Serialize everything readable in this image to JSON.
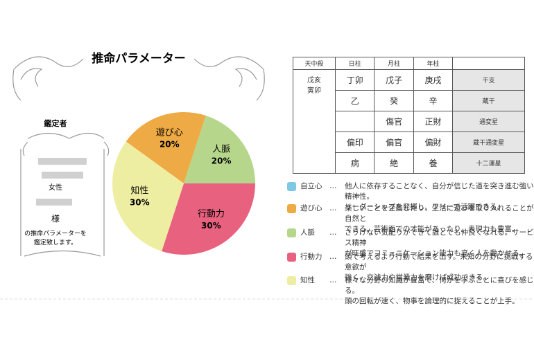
{
  "panel": {
    "title": "推命パラメーター",
    "appraiser": "鑑定者",
    "gender": "女性",
    "honorific": "様",
    "note": [
      "の推命パラメーターを",
      "鑑定致します。"
    ]
  },
  "chart_data": {
    "type": "pie",
    "categories": [
      "遊び心",
      "人脈",
      "行動力",
      "知性"
    ],
    "values": [
      20,
      20,
      30,
      30
    ],
    "value_labels": [
      "20%",
      "20%",
      "30%",
      "30%"
    ],
    "colors": [
      "#eeaa44",
      "#b6d78b",
      "#e8617f",
      "#eeeea2"
    ]
  },
  "table": {
    "header": [
      "天中殺",
      "日柱",
      "月柱",
      "年柱"
    ],
    "tenchusatsu": [
      "戊亥",
      "寅卯"
    ],
    "rows": [
      [
        "丁卯",
        "戊子",
        "庚戌",
        "干支"
      ],
      [
        "乙",
        "癸",
        "辛",
        "蔵干"
      ],
      [
        null,
        "傷官",
        "正財",
        "通変星"
      ],
      [
        "偏印",
        "偏官",
        "偏財",
        "蔵干通変星"
      ],
      [
        "病",
        "絶",
        "養",
        "十二運星"
      ]
    ]
  },
  "legend": [
    {
      "name": "自立心",
      "color": "#7ec8e3",
      "lines": [
        "他人に依存することなく、自分が信じた道を突き進む強い精神性。",
        "リーダーシップを発揮し、フリーで活躍できる。"
      ]
    },
    {
      "name": "遊び心",
      "color": "#eeaa44",
      "lines": [
        "楽しいことを企画したり、生活に遊びを取り入れることが自然と",
        "できる。芸術面での才能があったり、表現力も豊富。"
      ]
    },
    {
      "name": "人脈",
      "color": "#b6d78b",
      "lines": [
        "さりげない気配りができて誰とでも仲良くなれる。サービス精神",
        "が旺盛でコミュニケーション能力も高く人を動かせる。"
      ]
    },
    {
      "name": "行動力",
      "color": "#e8617f",
      "lines": [
        "頭で考えるより行動で結果を出す。未知の分野に挑戦する意欲が",
        "強く、交渉力や営業力を磨けば成功できる。"
      ]
    },
    {
      "name": "知性",
      "color": "#eeeea2",
      "lines": [
        "様々な分野の知識が豊富で、何かを学ぶことに喜びを感じる。",
        "頭の回転が速く、物事を論理的に捉えることが上手。"
      ]
    }
  ]
}
